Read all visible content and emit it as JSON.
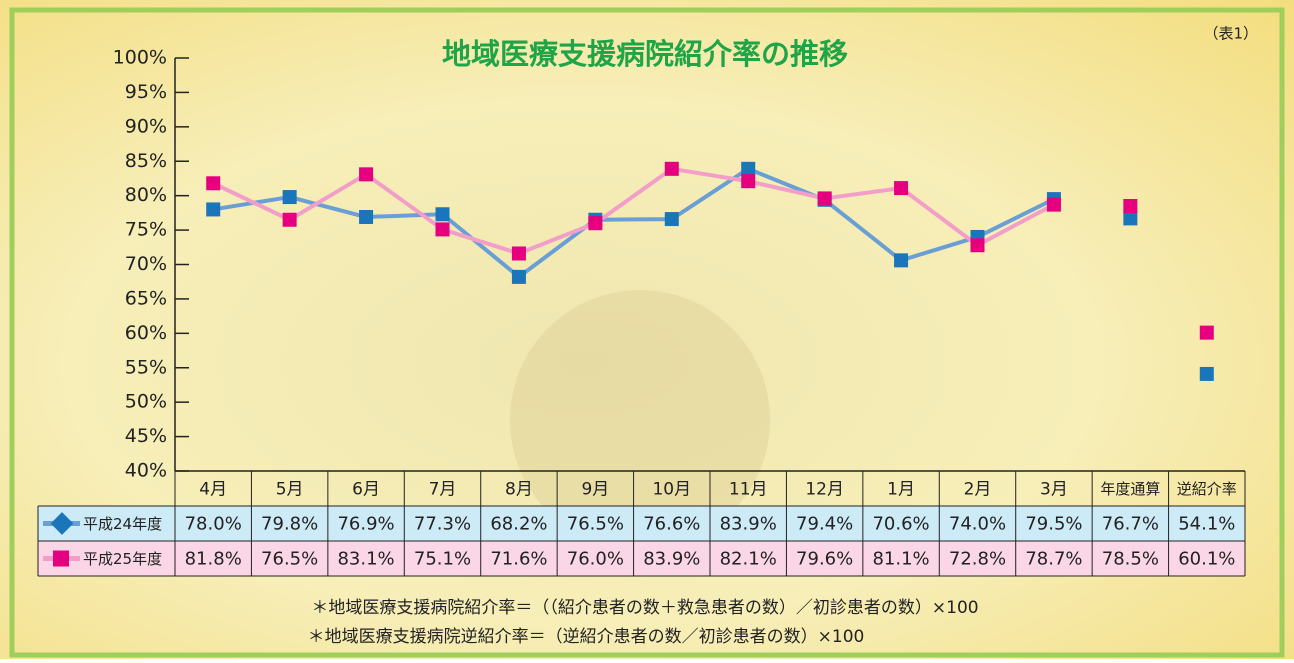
{
  "chart_data": {
    "type": "line",
    "title": "地域医療支援病院紹介率の推移",
    "note": "（表1）",
    "footnotes": [
      "＊地域医療支援病院紹介率＝（（紹介患者の数＋救急患者の数）／初診患者の数）×100",
      "＊地域医療支援病院逆紹介率＝（逆紹介患者の数／初診患者の数）×100"
    ],
    "categories": [
      "4月",
      "5月",
      "6月",
      "7月",
      "8月",
      "9月",
      "10月",
      "11月",
      "12月",
      "1月",
      "2月",
      "3月",
      "年度通算",
      "逆紹介率"
    ],
    "series": [
      {
        "name": "平成24年度",
        "color": "#1a75bb",
        "line_color": "#6a9fd6",
        "row_color": "#cdeaf7",
        "values": [
          78.0,
          79.8,
          76.9,
          77.3,
          68.2,
          76.5,
          76.6,
          83.9,
          79.4,
          70.6,
          74.0,
          79.5,
          76.7,
          54.1
        ],
        "value_labels": [
          "78.0%",
          "79.8%",
          "76.9%",
          "77.3%",
          "68.2%",
          "76.5%",
          "76.6%",
          "83.9%",
          "79.4%",
          "70.6%",
          "74.0%",
          "79.5%",
          "76.7%",
          "54.1%"
        ]
      },
      {
        "name": "平成25年度",
        "color": "#e4007f",
        "line_color": "#f29ec8",
        "row_color": "#fbd6e7",
        "values": [
          81.8,
          76.5,
          83.1,
          75.1,
          71.6,
          76.0,
          83.9,
          82.1,
          79.6,
          81.1,
          72.8,
          78.7,
          78.5,
          60.1
        ],
        "value_labels": [
          "81.8%",
          "76.5%",
          "83.1%",
          "75.1%",
          "71.6%",
          "76.0%",
          "83.9%",
          "82.1%",
          "79.6%",
          "81.1%",
          "72.8%",
          "78.7%",
          "78.5%",
          "60.1%"
        ]
      }
    ],
    "ylim": [
      40,
      100
    ],
    "yticks": [
      {
        "value": 40,
        "label": "40%"
      },
      {
        "value": 45,
        "label": "45%"
      },
      {
        "value": 50,
        "label": "50%"
      },
      {
        "value": 55,
        "label": "55%"
      },
      {
        "value": 60,
        "label": "60%"
      },
      {
        "value": 65,
        "label": "65%"
      },
      {
        "value": 70,
        "label": "70%"
      },
      {
        "value": 75,
        "label": "75%"
      },
      {
        "value": 80,
        "label": "80%"
      },
      {
        "value": 85,
        "label": "85%"
      },
      {
        "value": 90,
        "label": "90%"
      },
      {
        "value": 95,
        "label": "95%"
      },
      {
        "value": 100,
        "label": "100%"
      }
    ],
    "connected_count": 12
  }
}
